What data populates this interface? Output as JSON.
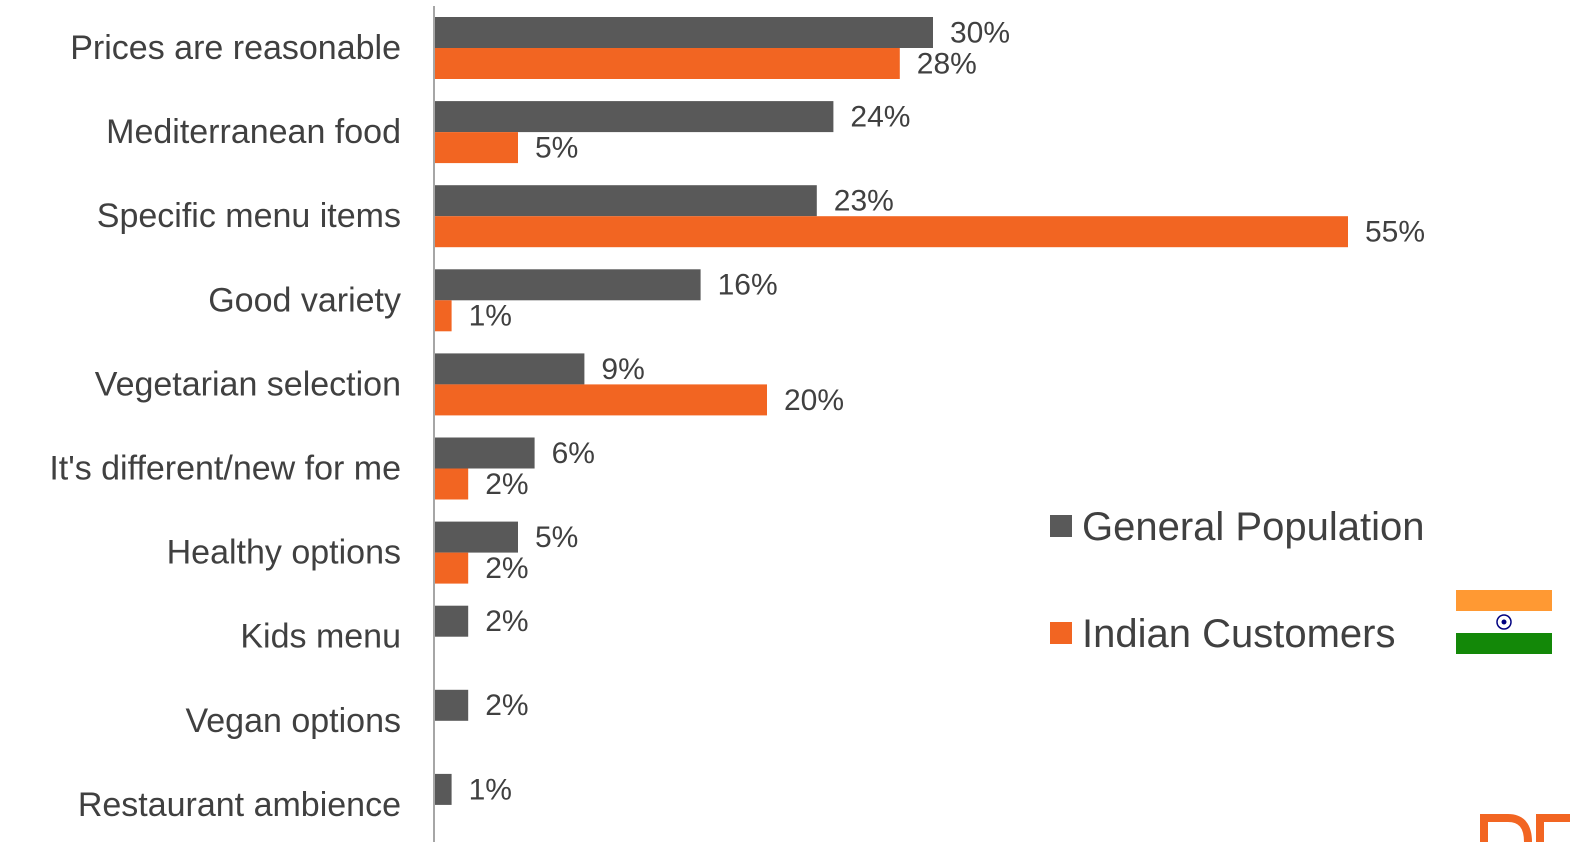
{
  "chart_data": {
    "type": "bar",
    "orientation": "horizontal",
    "categories": [
      "Prices are reasonable",
      "Mediterranean food",
      "Specific menu items",
      "Good variety",
      "Vegetarian selection",
      "It's different/new for me",
      "Healthy options",
      "Kids menu",
      "Vegan options",
      "Restaurant ambience"
    ],
    "series": [
      {
        "name": "General Population",
        "color": "#595959",
        "values": [
          30,
          24,
          23,
          16,
          9,
          6,
          5,
          2,
          2,
          1
        ],
        "labels": [
          "30%",
          "24%",
          "23%",
          "16%",
          "9%",
          "6%",
          "5%",
          "2%",
          "2%",
          "1%"
        ]
      },
      {
        "name": "Indian Customers",
        "color": "#f26522",
        "values": [
          28,
          5,
          55,
          1,
          20,
          2,
          2,
          null,
          null,
          null
        ],
        "labels": [
          "28%",
          "5%",
          "55%",
          "1%",
          "20%",
          "2%",
          "2%",
          null,
          null,
          null
        ]
      }
    ],
    "unit": "%",
    "xlim": [
      0,
      60
    ],
    "grid": false,
    "legend_position": "right"
  },
  "legend_icon": "india-flag-icon",
  "flag_colors": {
    "saffron": "#ff9933",
    "white": "#ffffff",
    "green": "#138808",
    "chakra": "#000080"
  }
}
